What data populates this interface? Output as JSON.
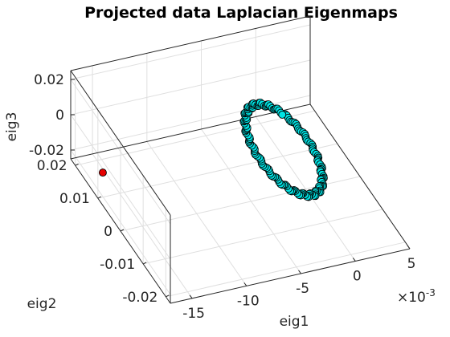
{
  "chart_data": {
    "type": "scatter",
    "title": "Projected data Laplacian Eigenmaps",
    "xlabel": "eig1",
    "ylabel": "eig2",
    "zlabel": "eig3",
    "x_exponent_label": "×10",
    "x_exponent_power": "-3",
    "x_ticks": [
      {
        "value": -15,
        "label": "-15"
      },
      {
        "value": -10,
        "label": "-10"
      },
      {
        "value": -5,
        "label": "-5"
      },
      {
        "value": 0,
        "label": "0"
      },
      {
        "value": 5,
        "label": "5"
      }
    ],
    "y_ticks": [
      {
        "value": -0.02,
        "label": "-0.02"
      },
      {
        "value": -0.01,
        "label": "-0.01"
      },
      {
        "value": 0,
        "label": "0"
      },
      {
        "value": 0.01,
        "label": "0.01"
      },
      {
        "value": 0.02,
        "label": "0.02"
      }
    ],
    "z_ticks": [
      {
        "value": -0.02,
        "label": "-0.02"
      },
      {
        "value": 0,
        "label": "0"
      },
      {
        "value": 0.02,
        "label": "0.02"
      }
    ],
    "xlim": [
      -17,
      5
    ],
    "ylim": [
      -0.022,
      0.022
    ],
    "zlim": [
      -0.025,
      0.025
    ],
    "grid": true,
    "series": [
      {
        "marker_color": "#00e5e5",
        "edge_color": "#000000",
        "shape": "ring",
        "ring_center": [
          -2,
          0,
          0
        ],
        "ring_radius": {
          "x": 1.2,
          "y": 0.02,
          "z": 0.022
        },
        "point_count": 160
      },
      {
        "marker_color": "#e60000",
        "edge_color": "#000000",
        "points": [
          {
            "x": -15.3,
            "y": 0.016,
            "z": -0.024
          }
        ]
      }
    ]
  }
}
